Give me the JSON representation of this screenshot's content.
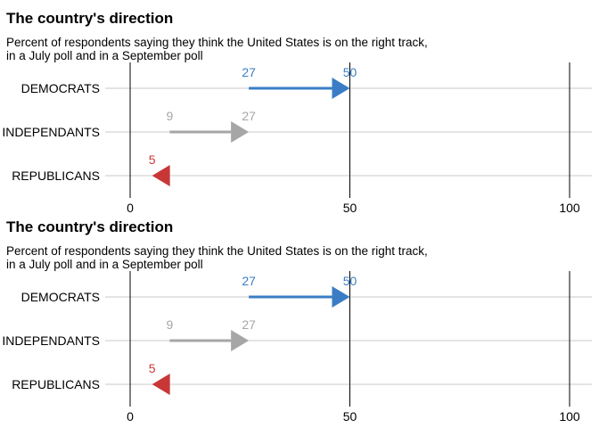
{
  "colors": {
    "democrats": "#3a7dc4",
    "independants": "#a6a6a6",
    "republicans": "#c83737",
    "gridline": "#c9c9c9",
    "refline": "#000000"
  },
  "chart_data": [
    {
      "type": "arrow",
      "title": "The country's direction",
      "subtitle_lines": [
        "Percent of respondents saying they think the United States is on the right track,",
        "in a July poll and in a September poll"
      ],
      "categories": [
        "DEMOCRATS",
        "INDEPENDANTS",
        "REPUBLICANS"
      ],
      "series": [
        {
          "category": "DEMOCRATS",
          "july": 27,
          "september": 50,
          "july_label": "27",
          "september_label": "50",
          "color": "#3a7dc4"
        },
        {
          "category": "INDEPENDANTS",
          "july": 9,
          "september": 27,
          "july_label": "9",
          "september_label": "27",
          "color": "#a6a6a6"
        },
        {
          "category": "REPUBLICANS",
          "july": 9,
          "september": 5,
          "july_label": "",
          "september_label": "5",
          "color": "#c83737"
        }
      ],
      "xlim": [
        0,
        100
      ],
      "xticks": [
        0,
        50,
        100
      ],
      "xtick_labels": [
        "0",
        "50",
        "100"
      ],
      "reference_lines": [
        0,
        50,
        100
      ],
      "grid": "horizontal"
    },
    {
      "type": "arrow",
      "title": "The country's direction",
      "subtitle_lines": [
        "Percent of respondents saying they think the United States is on the right track,",
        "in a July poll and in a September poll"
      ],
      "categories": [
        "DEMOCRATS",
        "INDEPENDANTS",
        "REPUBLICANS"
      ],
      "series": [
        {
          "category": "DEMOCRATS",
          "july": 27,
          "september": 50,
          "july_label": "27",
          "september_label": "50",
          "color": "#3a7dc4"
        },
        {
          "category": "INDEPENDANTS",
          "july": 9,
          "september": 27,
          "july_label": "9",
          "september_label": "27",
          "color": "#a6a6a6"
        },
        {
          "category": "REPUBLICANS",
          "july": 9,
          "september": 5,
          "july_label": "",
          "september_label": "5",
          "color": "#c83737"
        }
      ],
      "xlim": [
        0,
        100
      ],
      "xticks": [
        0,
        50,
        100
      ],
      "xtick_labels": [
        "0",
        "50",
        "100"
      ],
      "reference_lines": [
        0,
        50,
        100
      ],
      "grid": "horizontal"
    }
  ]
}
